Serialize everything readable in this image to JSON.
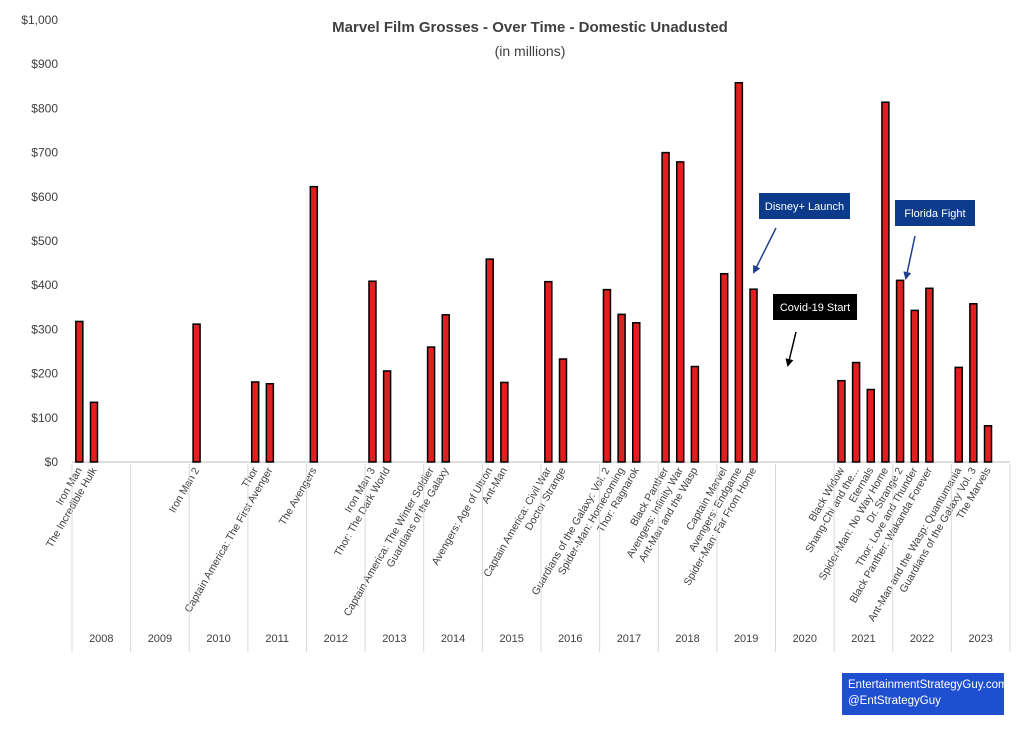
{
  "chart_data": {
    "type": "bar",
    "title": "Marvel Film Grosses - Over Time - Domestic Unadusted",
    "subtitle": "(in millions)",
    "ylim": [
      0,
      1000
    ],
    "yticks": [
      "$0",
      "$100",
      "$200",
      "$300",
      "$400",
      "$500",
      "$600",
      "$700",
      "$800",
      "$900",
      "$1,000"
    ],
    "grid": false,
    "bar_color": "#e02020",
    "years": [
      {
        "year": "2008",
        "films": [
          {
            "name": "Iron Man",
            "value": 318
          },
          {
            "name": "The Incredible Hulk",
            "value": 135
          }
        ]
      },
      {
        "year": "2009",
        "films": []
      },
      {
        "year": "2010",
        "films": [
          {
            "name": "Iron Man 2",
            "value": 312
          }
        ]
      },
      {
        "year": "2011",
        "films": [
          {
            "name": "Thor",
            "value": 181
          },
          {
            "name": "Captain America: The First Avenger",
            "value": 177
          }
        ]
      },
      {
        "year": "2012",
        "films": [
          {
            "name": "The Avengers",
            "value": 623
          }
        ]
      },
      {
        "year": "2013",
        "films": [
          {
            "name": "Iron Man 3",
            "value": 409
          },
          {
            "name": "Thor: The Dark World",
            "value": 206
          }
        ]
      },
      {
        "year": "2014",
        "films": [
          {
            "name": "Captain America: The Winter Soldier",
            "value": 260
          },
          {
            "name": "Guardians of the Galaxy",
            "value": 333
          }
        ]
      },
      {
        "year": "2015",
        "films": [
          {
            "name": "Avengers: Age of Ultron",
            "value": 459
          },
          {
            "name": "Ant-Man",
            "value": 180
          }
        ]
      },
      {
        "year": "2016",
        "films": [
          {
            "name": "Captain America: Civil War",
            "value": 408
          },
          {
            "name": "Doctor Strange",
            "value": 233
          }
        ]
      },
      {
        "year": "2017",
        "films": [
          {
            "name": "Guardians of the Galaxy: Vol. 2",
            "value": 390
          },
          {
            "name": "Spider-Man: Homecoming",
            "value": 334
          },
          {
            "name": "Thor: Ragnarok",
            "value": 315
          }
        ]
      },
      {
        "year": "2018",
        "films": [
          {
            "name": "Black Panther",
            "value": 700
          },
          {
            "name": "Avengers: Infinity War",
            "value": 679
          },
          {
            "name": "Ant-Man and the Wasp",
            "value": 216
          }
        ]
      },
      {
        "year": "2019",
        "films": [
          {
            "name": "Captain Marvel",
            "value": 426
          },
          {
            "name": "Avengers: Endgame",
            "value": 858
          },
          {
            "name": "Spider-Man: Far From Home",
            "value": 391
          }
        ]
      },
      {
        "year": "2020",
        "films": []
      },
      {
        "year": "2021",
        "films": [
          {
            "name": "Black Widow",
            "value": 184
          },
          {
            "name": "Shang-Chi and the...",
            "value": 225
          },
          {
            "name": "Eternals",
            "value": 164
          },
          {
            "name": "Spider-Man: No Way Home",
            "value": 814
          }
        ]
      },
      {
        "year": "2022",
        "films": [
          {
            "name": "Dr. Strange 2",
            "value": 411
          },
          {
            "name": "Thor: Love and Thunder",
            "value": 343
          },
          {
            "name": "Black Panther: Wakanda Forever",
            "value": 393
          }
        ]
      },
      {
        "year": "2023",
        "films": [
          {
            "name": "Ant-Man and the Wasp: Quantumania",
            "value": 214
          },
          {
            "name": "Guardians of the Galaxy Vol. 3",
            "value": 358
          },
          {
            "name": "The Marvels",
            "value": 82
          }
        ]
      }
    ],
    "annotations": [
      {
        "text": "Disney+ Launch",
        "box_color": "#0d3b8c"
      },
      {
        "text": "Covid-19 Start",
        "box_color": "#000000"
      },
      {
        "text": "Florida Fight",
        "box_color": "#0d3b8c"
      }
    ]
  },
  "credit": {
    "line1": "EntertainmentStrategyGuy.com",
    "line2": "@EntStrategyGuy"
  }
}
